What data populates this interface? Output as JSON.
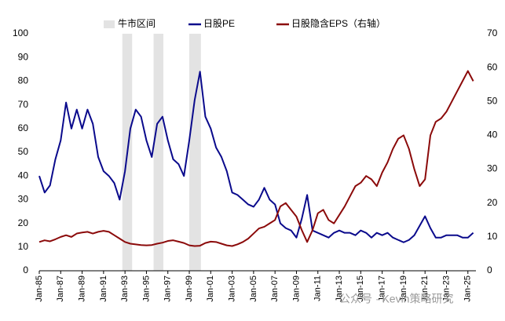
{
  "chart_data": {
    "type": "line",
    "watermark": "公众号 · Kevin策略研究",
    "shaded_regions": {
      "name": "牛市区间",
      "color": "#e3e3e3",
      "periods": [
        [
          "Oct-92",
          "Sep-93"
        ],
        [
          "Sep-95",
          "Aug-96"
        ],
        [
          "Jan-99",
          "Feb-00"
        ]
      ]
    },
    "x": [
      "Jan-85",
      "Jul-85",
      "Jan-86",
      "Jul-86",
      "Jan-87",
      "Jul-87",
      "Jan-88",
      "Jul-88",
      "Jan-89",
      "Jul-89",
      "Jan-90",
      "Jul-90",
      "Jan-91",
      "Jul-91",
      "Jan-92",
      "Jul-92",
      "Jan-93",
      "Jul-93",
      "Jan-94",
      "Jul-94",
      "Jan-95",
      "Jul-95",
      "Jan-96",
      "Jul-96",
      "Jan-97",
      "Jul-97",
      "Jan-98",
      "Jul-98",
      "Jan-99",
      "Jul-99",
      "Jan-00",
      "Jul-00",
      "Jan-01",
      "Jul-01",
      "Jan-02",
      "Jul-02",
      "Jan-03",
      "Jul-03",
      "Jan-04",
      "Jul-04",
      "Jan-05",
      "Jul-05",
      "Jan-06",
      "Jul-06",
      "Jan-07",
      "Jul-07",
      "Jan-08",
      "Jul-08",
      "Jan-09",
      "Jul-09",
      "Jan-10",
      "Jul-10",
      "Jan-11",
      "Jul-11",
      "Jan-12",
      "Jul-12",
      "Jan-13",
      "Jul-13",
      "Jan-14",
      "Jul-14",
      "Jan-15",
      "Jul-15",
      "Jan-16",
      "Jul-16",
      "Jan-17",
      "Jul-17",
      "Jan-18",
      "Jul-18",
      "Jan-19",
      "Jul-19",
      "Jan-20",
      "Jul-20",
      "Jan-21",
      "Jul-21",
      "Jan-22",
      "Jul-22",
      "Jan-23",
      "Jul-23",
      "Jan-24",
      "Jul-24",
      "Jan-25",
      "Jul-25"
    ],
    "series": [
      {
        "name": "日股PE",
        "color": "#0a0a8c",
        "values": [
          40,
          33,
          36,
          47,
          55,
          71,
          60,
          68,
          60,
          68,
          62,
          48,
          42,
          40,
          37,
          30,
          42,
          60,
          68,
          65,
          55,
          48,
          62,
          65,
          55,
          47,
          45,
          40,
          55,
          72,
          84,
          65,
          60,
          52,
          48,
          42,
          33,
          32,
          30,
          28,
          27,
          30,
          35,
          30,
          28,
          20,
          18,
          17,
          14,
          22,
          32,
          17,
          16,
          15,
          14,
          16,
          17,
          16,
          16,
          15,
          17,
          16,
          14,
          16,
          15,
          16,
          14,
          13,
          12,
          13,
          15,
          19,
          23,
          18,
          14,
          14,
          15,
          15,
          15,
          14,
          14,
          16
        ]
      },
      {
        "name": "日股隐含EPS（右轴）",
        "color": "#8b0a0a",
        "axis": "y2",
        "values": [
          8.5,
          9,
          8.7,
          9.3,
          10,
          10.5,
          10,
          11,
          11.3,
          11.5,
          11,
          11.5,
          11.8,
          11.5,
          10.5,
          9.5,
          8.5,
          8,
          7.8,
          7.6,
          7.5,
          7.6,
          8,
          8.3,
          8.8,
          9,
          8.6,
          8.2,
          7.5,
          7.3,
          7.4,
          8.2,
          8.6,
          8.5,
          8,
          7.5,
          7.3,
          7.8,
          8.5,
          9.5,
          11,
          12.5,
          13,
          14,
          15,
          19,
          20,
          18,
          16,
          12,
          8.5,
          12,
          17,
          18,
          15,
          14,
          16.5,
          19,
          22,
          25,
          26,
          28,
          27,
          25,
          29,
          32,
          36,
          39,
          40,
          36,
          30,
          25,
          27,
          40,
          44,
          45,
          47,
          50,
          53,
          56,
          59,
          56
        ]
      }
    ],
    "xlim": [
      "Jan-85",
      "Oct-25"
    ],
    "xticks": [
      "Jan-85",
      "Jan-87",
      "Jan-89",
      "Jan-91",
      "Jan-93",
      "Jan-95",
      "Jan-97",
      "Jan-99",
      "Jan-01",
      "Jan-03",
      "Jan-05",
      "Jan-07",
      "Jan-09",
      "Jan-11",
      "Jan-13",
      "Jan-15",
      "Jan-17",
      "Jan-19",
      "Jan-21",
      "Jan-23",
      "Jan-25"
    ],
    "ylim": [
      0,
      100
    ],
    "yticks": [
      0,
      10,
      20,
      30,
      40,
      50,
      60,
      70,
      80,
      90,
      100
    ],
    "y2lim": [
      0,
      70
    ],
    "y2ticks": [
      0,
      10,
      20,
      30,
      40,
      50,
      60,
      70
    ]
  }
}
